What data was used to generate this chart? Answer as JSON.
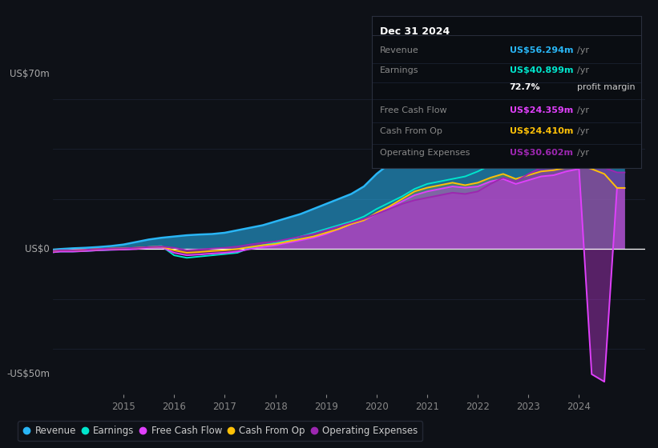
{
  "background_color": "#0e1117",
  "plot_bg_color": "#0e1117",
  "ylabel_top": "US$70m",
  "ylabel_zero": "US$0",
  "ylabel_bottom": "-US$50m",
  "ylim": [
    -58,
    78
  ],
  "xlim": [
    2013.6,
    2025.3
  ],
  "xticks": [
    2015,
    2016,
    2017,
    2018,
    2019,
    2020,
    2021,
    2022,
    2023,
    2024
  ],
  "grid_color": "#1e2535",
  "zero_line_color": "#ffffff",
  "series_colors": {
    "Revenue": "#29b6f6",
    "Earnings": "#00e5cc",
    "Free Cash Flow": "#e040fb",
    "Cash From Op": "#ffc107",
    "Operating Expenses": "#9c27b0"
  },
  "years": [
    2013.5,
    2013.75,
    2014.0,
    2014.25,
    2014.5,
    2014.75,
    2015.0,
    2015.25,
    2015.5,
    2015.75,
    2016.0,
    2016.25,
    2016.5,
    2016.75,
    2017.0,
    2017.25,
    2017.5,
    2017.75,
    2018.0,
    2018.25,
    2018.5,
    2018.75,
    2019.0,
    2019.25,
    2019.5,
    2019.75,
    2020.0,
    2020.25,
    2020.5,
    2020.75,
    2021.0,
    2021.25,
    2021.5,
    2021.75,
    2022.0,
    2022.25,
    2022.5,
    2022.75,
    2023.0,
    2023.25,
    2023.5,
    2023.75,
    2024.0,
    2024.25,
    2024.5,
    2024.75,
    2024.9
  ],
  "Revenue": [
    -0.5,
    0.0,
    0.3,
    0.5,
    0.8,
    1.2,
    1.8,
    2.8,
    3.8,
    4.5,
    5.0,
    5.5,
    5.8,
    6.0,
    6.5,
    7.5,
    8.5,
    9.5,
    11.0,
    12.5,
    14.0,
    16.0,
    18.0,
    20.0,
    22.0,
    25.0,
    30.0,
    34.0,
    37.0,
    40.0,
    44.0,
    45.0,
    46.0,
    47.0,
    50.0,
    56.0,
    60.0,
    62.0,
    65.0,
    68.0,
    68.5,
    67.0,
    64.0,
    62.0,
    59.0,
    56.294,
    56.294
  ],
  "Earnings": [
    -1.5,
    -1.0,
    -1.0,
    -0.8,
    -0.5,
    -0.3,
    -0.2,
    0.2,
    0.8,
    1.2,
    -2.5,
    -3.5,
    -3.0,
    -2.5,
    -2.0,
    -1.5,
    0.5,
    1.5,
    2.5,
    3.5,
    5.0,
    6.5,
    8.0,
    9.5,
    11.0,
    13.0,
    16.0,
    18.5,
    21.0,
    24.0,
    26.0,
    27.0,
    28.0,
    29.0,
    31.0,
    33.5,
    35.0,
    34.0,
    36.0,
    37.5,
    37.0,
    36.0,
    34.0,
    33.0,
    37.0,
    40.899,
    40.899
  ],
  "Free Cash Flow": [
    -1.5,
    -1.0,
    -1.0,
    -0.8,
    -0.5,
    -0.3,
    -0.2,
    0.0,
    0.5,
    0.8,
    -1.5,
    -2.5,
    -2.2,
    -1.8,
    -1.5,
    -1.0,
    0.0,
    0.8,
    1.5,
    2.5,
    3.5,
    4.5,
    6.0,
    8.0,
    10.0,
    11.5,
    14.0,
    16.5,
    19.0,
    21.5,
    23.0,
    24.0,
    25.0,
    24.5,
    25.0,
    27.0,
    28.0,
    26.0,
    27.5,
    29.0,
    29.5,
    31.0,
    32.0,
    -50.0,
    -53.0,
    24.359,
    24.359
  ],
  "Cash From Op": [
    -1.0,
    -0.5,
    -0.5,
    -0.3,
    0.0,
    0.2,
    0.3,
    0.5,
    0.8,
    1.0,
    -0.5,
    -1.5,
    -1.2,
    -0.8,
    -0.5,
    0.0,
    0.8,
    1.5,
    2.0,
    3.0,
    4.0,
    5.0,
    6.5,
    8.0,
    10.0,
    11.5,
    14.5,
    17.0,
    20.0,
    23.0,
    24.5,
    25.5,
    26.5,
    25.5,
    26.5,
    28.5,
    30.0,
    28.0,
    29.5,
    31.0,
    31.5,
    32.5,
    33.5,
    32.0,
    30.0,
    24.41,
    24.41
  ],
  "Operating Expenses": [
    -1.0,
    -0.5,
    -0.5,
    -0.3,
    0.0,
    0.2,
    0.3,
    0.5,
    0.8,
    1.0,
    0.5,
    -0.5,
    -0.2,
    0.2,
    0.5,
    1.0,
    1.8,
    2.5,
    3.0,
    4.0,
    5.0,
    6.0,
    7.5,
    9.0,
    10.5,
    12.0,
    14.0,
    16.0,
    18.0,
    19.5,
    20.5,
    21.5,
    22.5,
    22.0,
    23.0,
    26.0,
    28.5,
    27.0,
    30.0,
    32.5,
    34.0,
    35.5,
    35.5,
    34.5,
    32.5,
    30.602,
    30.602
  ],
  "infobox": {
    "title": "Dec 31 2024",
    "rows": [
      {
        "label": "Revenue",
        "value": "US$56.294m",
        "unit": "/yr",
        "color": "#29b6f6",
        "bold_value": true
      },
      {
        "label": "Earnings",
        "value": "US$40.899m",
        "unit": "/yr",
        "color": "#00e5cc",
        "bold_value": true
      },
      {
        "label": "",
        "value": "72.7%",
        "unit": "profit margin",
        "color": "#ffffff",
        "bold_value": true
      },
      {
        "label": "Free Cash Flow",
        "value": "US$24.359m",
        "unit": "/yr",
        "color": "#e040fb",
        "bold_value": true
      },
      {
        "label": "Cash From Op",
        "value": "US$24.410m",
        "unit": "/yr",
        "color": "#ffc107",
        "bold_value": true
      },
      {
        "label": "Operating Expenses",
        "value": "US$30.602m",
        "unit": "/yr",
        "color": "#9c27b0",
        "bold_value": true
      }
    ]
  },
  "legend": [
    {
      "label": "Revenue",
      "color": "#29b6f6"
    },
    {
      "label": "Earnings",
      "color": "#00e5cc"
    },
    {
      "label": "Free Cash Flow",
      "color": "#e040fb"
    },
    {
      "label": "Cash From Op",
      "color": "#ffc107"
    },
    {
      "label": "Operating Expenses",
      "color": "#9c27b0"
    }
  ]
}
